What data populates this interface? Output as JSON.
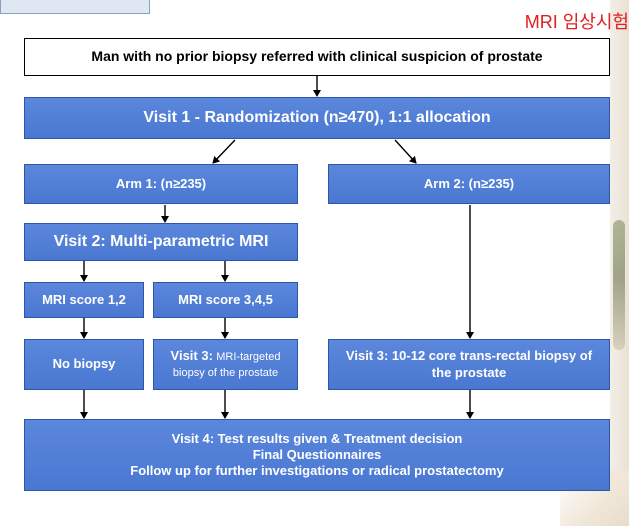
{
  "header": {
    "korean_title": "MRI 임상시험"
  },
  "flowchart": {
    "referral": "Man with no prior biopsy referred with clinical suspicion of prostate",
    "visit1": "Visit 1 - Randomization (n≥470), 1:1 allocation",
    "arm1": "Arm 1: (n≥235)",
    "arm2": "Arm 2: (n≥235)",
    "visit2": "Visit 2: Multi-parametric MRI",
    "mri_low": "MRI score 1,2",
    "mri_high": "MRI score 3,4,5",
    "no_biopsy": "No biopsy",
    "visit3_mri_prefix": "Visit 3:",
    "visit3_mri_rest": "MRI-targeted biopsy of the prostate",
    "visit3_trus": "Visit 3: 10-12 core trans-rectal biopsy of the prostate",
    "visit4_line1": "Visit 4: Test results given & Treatment decision",
    "visit4_line2": "Final Questionnaires",
    "visit4_line3": "Follow up for further investigations or radical prostatectomy"
  },
  "colors": {
    "box_blue": "#4a78d1",
    "title_red": "#e02020"
  }
}
